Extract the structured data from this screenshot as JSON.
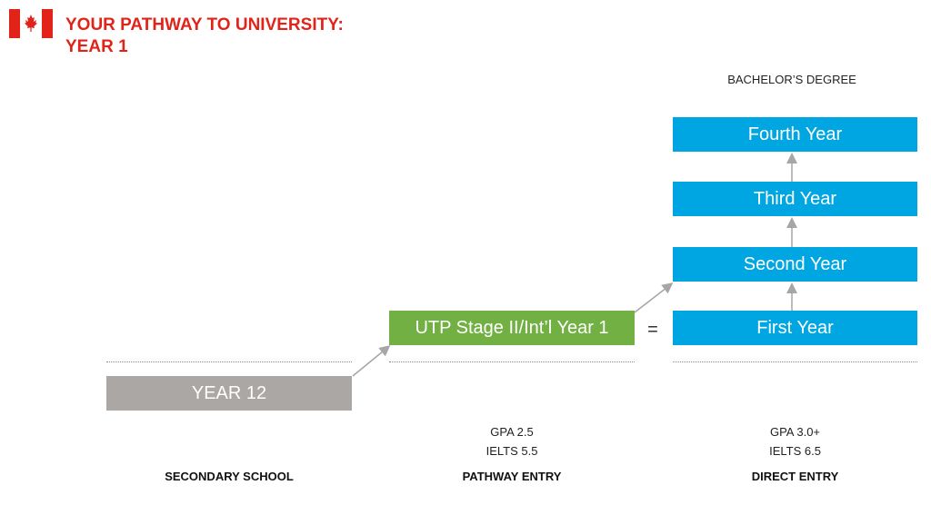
{
  "header": {
    "title_line1": "YOUR PATHWAY TO UNIVERSITY:",
    "title_line2": "YEAR 1",
    "flag_icon": "canada-flag-icon"
  },
  "degree": {
    "label": "BACHELOR’S DEGREE",
    "years": [
      "Fourth Year",
      "Third Year",
      "Second Year",
      "First Year"
    ]
  },
  "pathway": {
    "box_label": "UTP Stage II/Int’l Year 1",
    "equals": "=",
    "gpa": "GPA 2.5",
    "ielts": "IELTS 5.5",
    "column_label": "PATHWAY ENTRY"
  },
  "secondary": {
    "box_label": "YEAR 12",
    "column_label": "SECONDARY SCHOOL"
  },
  "direct": {
    "gpa": "GPA 3.0+",
    "ielts": "IELTS 6.5",
    "column_label": "DIRECT ENTRY"
  },
  "colors": {
    "title_red": "#e2231a",
    "degree_blue": "#00a6e2",
    "pathway_green": "#72b043",
    "school_gray": "#aba7a4"
  }
}
